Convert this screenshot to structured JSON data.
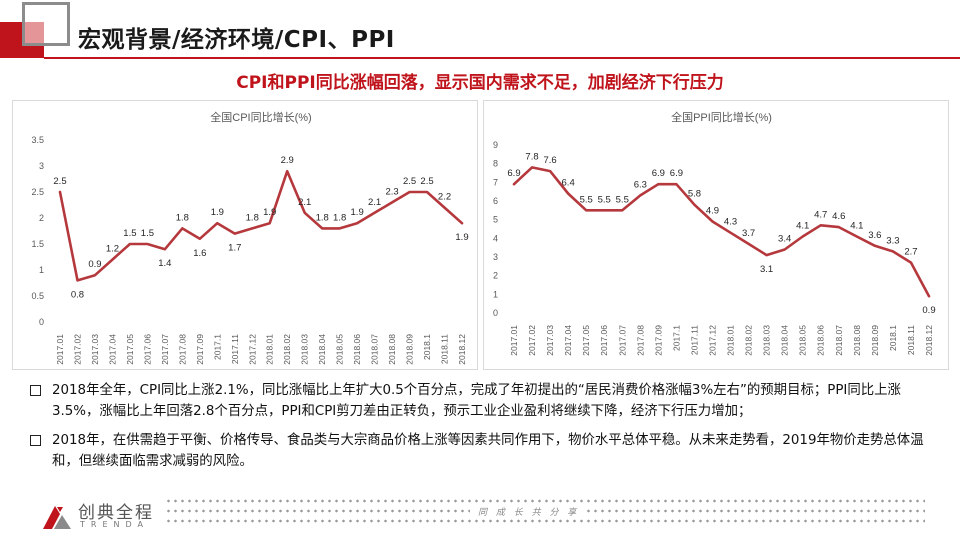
{
  "header": {
    "title": "宏观背景/经济环境/CPI、PPI",
    "accent_color": "#c0141c"
  },
  "subtitle": "CPI和PPI同比涨幅回落，显示国内需求不足，加剧经济下行压力",
  "chart_data": [
    {
      "type": "line",
      "title": "全国CPI同比增长(%)",
      "categories": [
        "2017.01",
        "2017.02",
        "2017.03",
        "2017.04",
        "2017.05",
        "2017.06",
        "2017.07",
        "2017.08",
        "2017.09",
        "2017.10",
        "2017.11",
        "2017.12",
        "2018.01",
        "2018.02",
        "2018.03",
        "2018.04",
        "2018.05",
        "2018.06",
        "2018.07",
        "2018.08",
        "2018.09",
        "2018.10",
        "2018.11",
        "2018.12"
      ],
      "x_tick_labels": [
        "2017.01",
        "2017.02",
        "2017.03",
        "2017.04",
        "2017.05",
        "2017.06",
        "2017.07",
        "2017.08",
        "2017.09",
        "2017.1",
        "2017.11",
        "2017.12",
        "2018.01",
        "2018.02",
        "2018.03",
        "2018.04",
        "2018.05",
        "2018.06",
        "2018.07",
        "2018.08",
        "2018.09",
        "2018.1",
        "2018.11",
        "2018.12"
      ],
      "values": [
        2.5,
        0.8,
        0.9,
        1.2,
        1.5,
        1.5,
        1.4,
        1.8,
        1.6,
        1.9,
        1.7,
        1.8,
        1.9,
        2.9,
        2.1,
        1.8,
        1.8,
        1.9,
        2.1,
        2.3,
        2.5,
        2.5,
        2.2,
        1.9
      ],
      "data_labels": [
        "2.5",
        "0.8",
        "0.9",
        "1.2",
        "1.5",
        "1.5",
        "1.4",
        "1.8",
        "1.6",
        "1.9",
        "1.7",
        "1.8",
        "1.9",
        "2.9",
        "2.1",
        "1.8",
        "1.8",
        "1.9",
        "2.1",
        "2.3",
        "2.5",
        "2.5",
        "2.2",
        "1.9"
      ],
      "y_ticks": [
        "0",
        "0.5",
        "1",
        "1.5",
        "2",
        "2.5",
        "3",
        "3.5"
      ],
      "ylim": [
        0,
        3.5
      ],
      "line_color": "#b5383d",
      "grid": false
    },
    {
      "type": "line",
      "title": "全国PPI同比增长(%)",
      "categories": [
        "2017.01",
        "2017.02",
        "2017.03",
        "2017.04",
        "2017.05",
        "2017.06",
        "2017.07",
        "2017.08",
        "2017.09",
        "2017.10",
        "2017.11",
        "2017.12",
        "2018.01",
        "2018.02",
        "2018.03",
        "2018.04",
        "2018.05",
        "2018.06",
        "2018.07",
        "2018.08",
        "2018.09",
        "2018.10",
        "2018.11",
        "2018.12"
      ],
      "x_tick_labels": [
        "2017.01",
        "2017.02",
        "2017.03",
        "2017.04",
        "2017.05",
        "2017.06",
        "2017.07",
        "2017.08",
        "2017.09",
        "2017.1",
        "2017.11",
        "2017.12",
        "2018.01",
        "2018.02",
        "2018.03",
        "2018.04",
        "2018.05",
        "2018.06",
        "2018.07",
        "2018.08",
        "2018.09",
        "2018.1",
        "2018.11",
        "2018.12"
      ],
      "values": [
        6.9,
        7.8,
        7.6,
        6.4,
        5.5,
        5.5,
        5.5,
        6.3,
        6.9,
        6.9,
        5.8,
        4.9,
        4.3,
        3.7,
        3.1,
        3.4,
        4.1,
        4.7,
        4.6,
        4.1,
        3.6,
        3.3,
        2.7,
        0.9
      ],
      "data_labels": [
        "6.9",
        "7.8",
        "7.6",
        "6.4",
        "5.5",
        "5.5",
        "5.5",
        "6.3",
        "6.9",
        "6.9",
        "5.8",
        "4.9",
        "4.3",
        "3.7",
        "3.1",
        "3.4",
        "4.1",
        "4.7",
        "4.6",
        "4.1",
        "3.6",
        "3.3",
        "2.7",
        "0.9"
      ],
      "y_ticks": [
        "0",
        "1",
        "2",
        "3",
        "4",
        "5",
        "6",
        "7",
        "8",
        "9"
      ],
      "ylim": [
        0,
        9
      ],
      "line_color": "#b5383d",
      "grid": false
    }
  ],
  "bullets": [
    "2018年全年，CPI同比上涨2.1%，同比涨幅比上年扩大0.5个百分点，完成了年初提出的“居民消费价格涨幅3%左右”的预期目标；PPI同比上涨3.5%，涨幅比上年回落2.8个百分点，PPI和CPI剪刀差由正转负，预示工业企业盈利将继续下降，经济下行压力增加；",
    "2018年，在供需趋于平衡、价格传导、食品类与大宗商品价格上涨等因素共同作用下，物价水平总体平稳。从未来走势看，2019年物价走势总体温和，但继续面临需求减弱的风险。"
  ],
  "footer": {
    "brand": "创典全程",
    "brand_en": "TRENDA",
    "slogan": "同 成 长   共 分 享"
  }
}
